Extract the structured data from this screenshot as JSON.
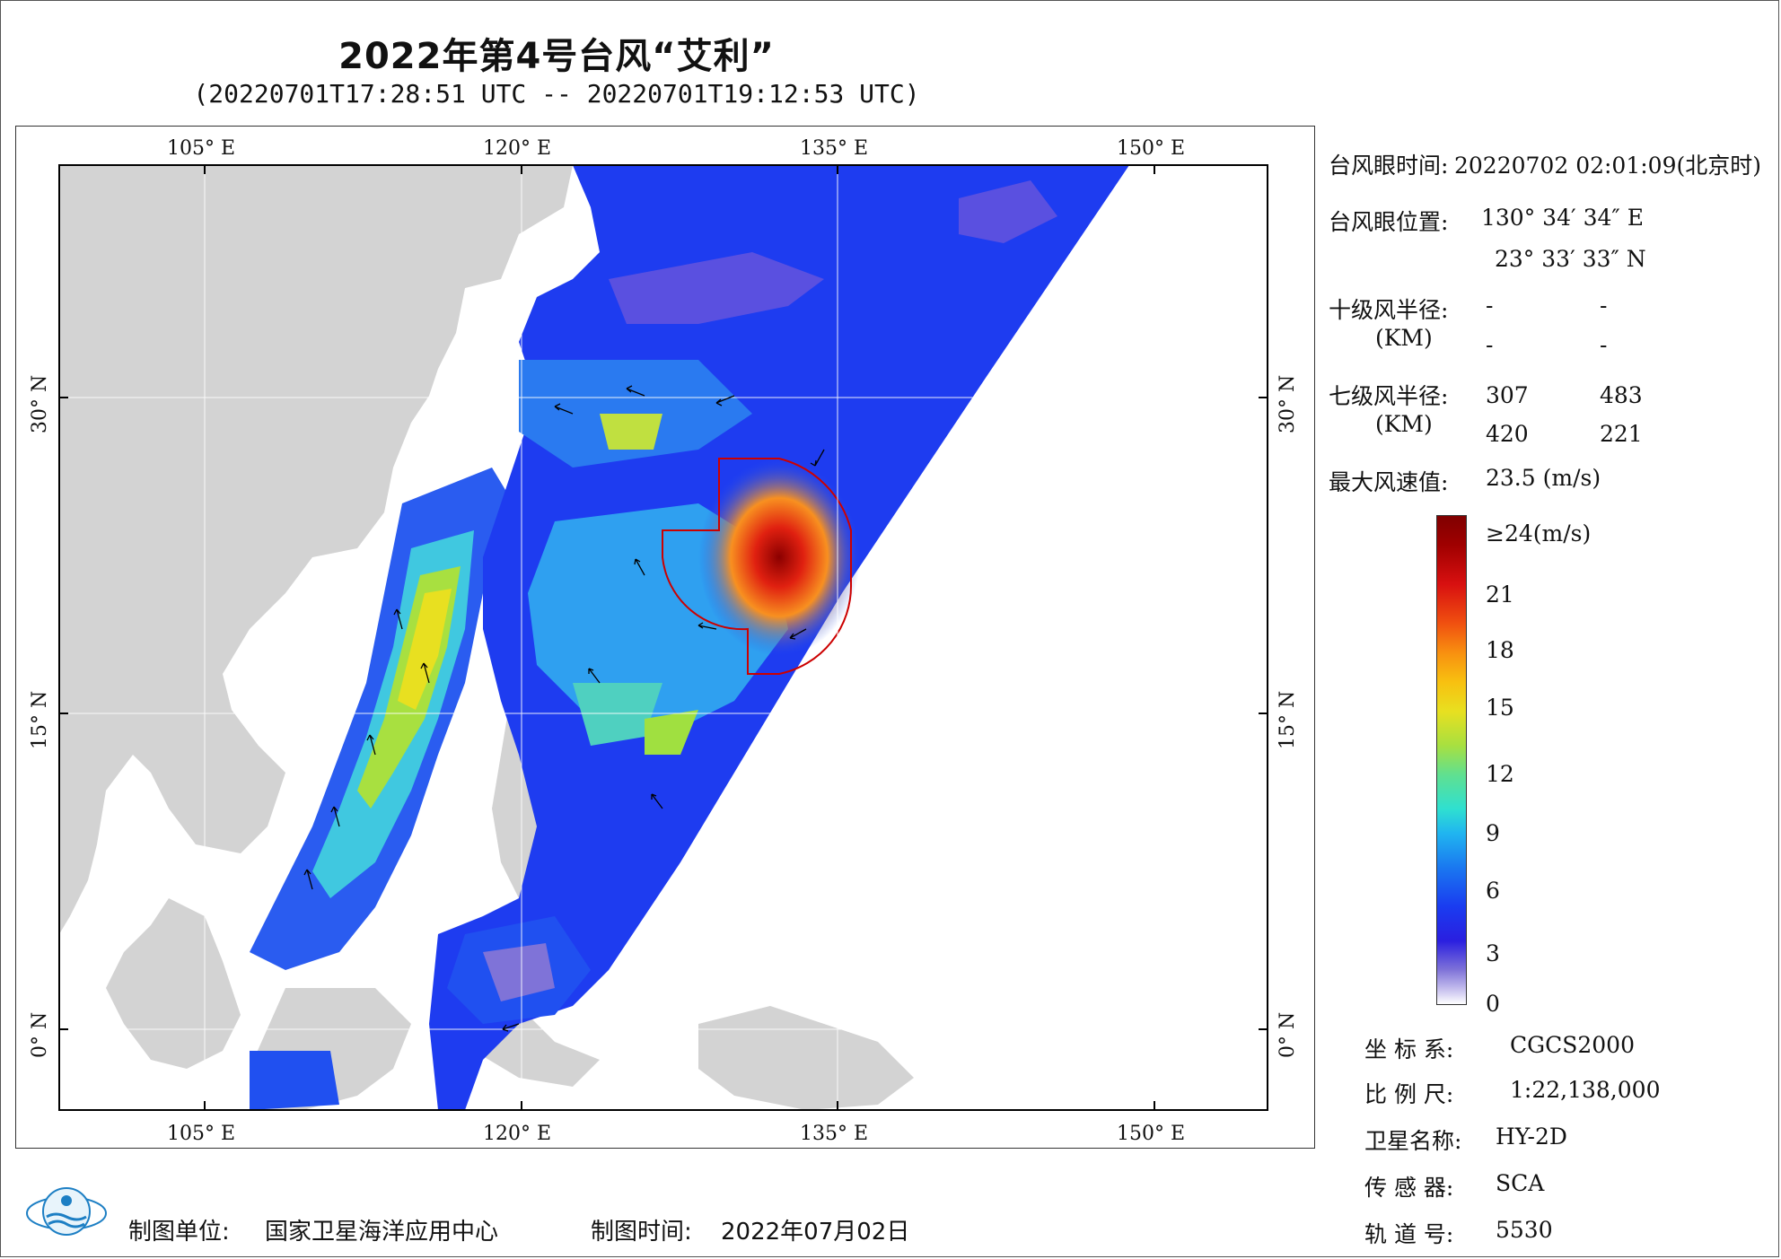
{
  "header": {
    "title": "2022年第4号台风“艾利”",
    "subtitle": "(20220701T17:28:51 UTC -- 20220701T19:12:53 UTC)"
  },
  "map": {
    "lon_labels": [
      "105° E",
      "120° E",
      "135° E",
      "150° E"
    ],
    "lat_labels": [
      "30° N",
      "15° N",
      "0° N"
    ],
    "colors": {
      "land": "#d3d3d3",
      "ocean": "#ffffff",
      "circle": "#cc0000"
    }
  },
  "info": {
    "eye_time_label": "台风眼时间:",
    "eye_time_value": "20220702 02:01:09(北京时)",
    "eye_pos_label": "台风眼位置:",
    "eye_lon": "130° 34′ 34″ E",
    "eye_lat": "23° 33′ 33″ N",
    "r10_label": "十级风半径:",
    "r10_unit": "(KM)",
    "r10_values": [
      "-",
      "-",
      "-",
      "-"
    ],
    "r7_label": "七级风半径:",
    "r7_unit": "(KM)",
    "r7_values": [
      "307",
      "483",
      "420",
      "221"
    ],
    "max_label": "最大风速值:",
    "max_value": "23.5 (m/s)"
  },
  "colorbar": {
    "labels": [
      "≥24(m/s)",
      "21",
      "18",
      "15",
      "12",
      "9",
      "6",
      "3",
      "0"
    ]
  },
  "meta": {
    "crs_label": "坐 标 系:",
    "crs_value": "CGCS2000",
    "scale_label": "比 例 尺:",
    "scale_value": "1:22,138,000",
    "sat_label": "卫星名称:",
    "sat_value": "HY-2D",
    "sensor_label": "传 感 器:",
    "sensor_value": "SCA",
    "orbit_label": "轨 道 号:",
    "orbit_value": "5530"
  },
  "footer": {
    "org_label": "制图单位:",
    "org_value": "国家卫星海洋应用中心",
    "date_label": "制图时间:",
    "date_value": "2022年07月02日"
  }
}
